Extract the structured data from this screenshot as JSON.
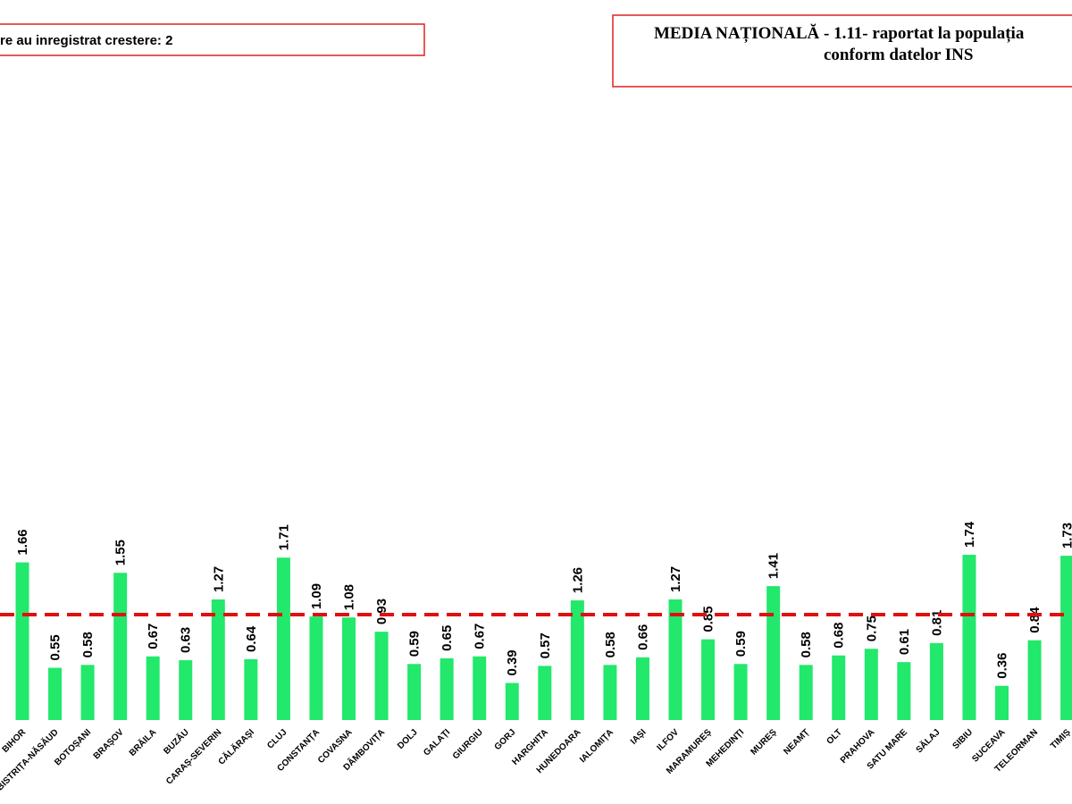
{
  "chart_data": {
    "type": "bar",
    "note_box": "re au inregistrat crestere: 2",
    "title_lines": [
      "MEDIA NAȚIONALĂ  - 1.11-  raportat la populația",
      "conform datelor INS"
    ],
    "categories": [
      "BIHOR",
      "BISTRIȚA-NĂSĂUD",
      "BOTOȘANI",
      "BRAȘOV",
      "BRĂILA",
      "BUZĂU",
      "CARAȘ-SEVERIN",
      "CĂLĂRAȘI",
      "CLUJ",
      "CONSTANȚA",
      "COVASNA",
      "DÂMBOVIȚA",
      "DOLJ",
      "GALAȚI",
      "GIURGIU",
      "GORJ",
      "HARGHITA",
      "HUNEDOARA",
      "IALOMIȚA",
      "IAȘI",
      "ILFOV",
      "MARAMUREȘ",
      "MEHEDINȚI",
      "MUREȘ",
      "NEAMȚ",
      "OLT",
      "PRAHOVA",
      "SATU MARE",
      "SĂLAJ",
      "SIBIU",
      "SUCEAVA",
      "TELEORMAN",
      "TIMIȘ"
    ],
    "values": [
      1.66,
      0.55,
      0.58,
      1.55,
      0.67,
      0.63,
      1.27,
      0.64,
      1.71,
      1.09,
      1.08,
      0.93,
      0.59,
      0.65,
      0.67,
      0.39,
      0.57,
      1.26,
      0.58,
      0.66,
      1.27,
      0.85,
      0.59,
      1.41,
      0.58,
      0.68,
      0.75,
      0.61,
      0.81,
      1.74,
      0.36,
      0.84,
      1.73
    ],
    "color": "#22e86b",
    "reference_line": {
      "value": 1.11,
      "color": "#e01010"
    }
  }
}
